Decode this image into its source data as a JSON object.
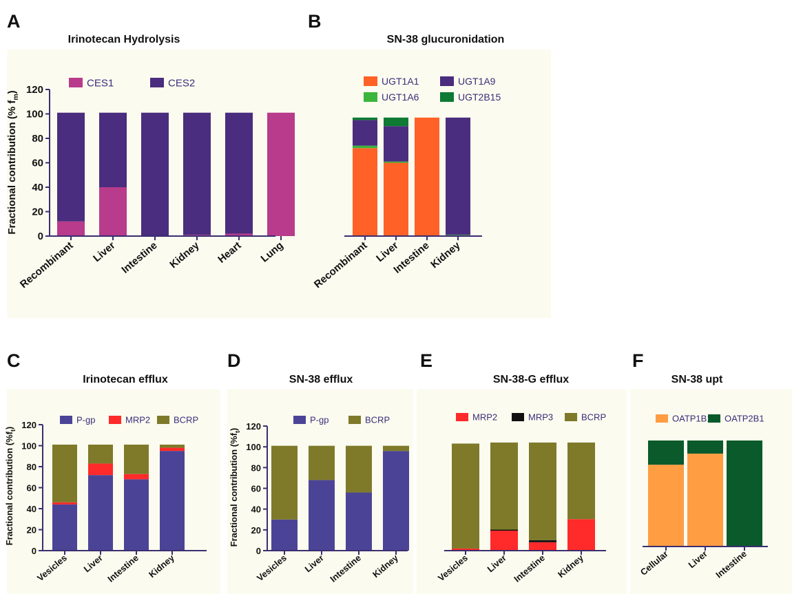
{
  "chart_data": [
    {
      "id": "A",
      "panel_label": "A",
      "title": "Irinotecan Hydrolysis",
      "type": "bar",
      "stacked": true,
      "ylabel": "Fractional contribution (% f",
      "ylabel_sub": "m",
      "ylabel_end": ")",
      "ylim": [
        0,
        120
      ],
      "yticks": [
        0,
        20,
        40,
        60,
        80,
        100,
        120
      ],
      "categories": [
        "Recombinant",
        "Liver",
        "Intestine",
        "Kidney",
        "Heart",
        "Lung"
      ],
      "series": [
        {
          "name": "CES1",
          "color": "#b83b8c",
          "values": [
            12,
            40,
            0,
            1,
            2,
            101
          ]
        },
        {
          "name": "CES2",
          "color": "#4a2d7e",
          "values": [
            89,
            61,
            101,
            100,
            99,
            0
          ]
        }
      ],
      "legend_rows": [
        [
          "CES1",
          "CES2"
        ]
      ]
    },
    {
      "id": "B",
      "panel_label": "B",
      "title": "SN-38 glucuronidation",
      "type": "bar",
      "stacked": true,
      "ylim": [
        0,
        120
      ],
      "categories": [
        "Recombinant",
        "Liver",
        "Intestine",
        "Kidney"
      ],
      "series": [
        {
          "name": "UGT1A1",
          "color": "#ff6127",
          "values": [
            72,
            60,
            97,
            0
          ]
        },
        {
          "name": "UGT1A6",
          "color": "#3bb53b",
          "values": [
            2,
            1,
            0,
            1
          ]
        },
        {
          "name": "UGT1A9",
          "color": "#4a2d7e",
          "values": [
            21,
            29,
            0,
            96
          ]
        },
        {
          "name": "UGT2B15",
          "color": "#0e7a33",
          "values": [
            2,
            7,
            0,
            0
          ]
        }
      ],
      "legend_rows": [
        [
          "UGT1A1",
          "UGT1A9"
        ],
        [
          "UGT1A6",
          "UGT2B15"
        ]
      ]
    },
    {
      "id": "C",
      "panel_label": "C",
      "title": "Irinotecan efflux",
      "type": "bar",
      "stacked": true,
      "ylabel": "Fractional contribution (%f",
      "ylabel_sub": "t",
      "ylabel_end": ")",
      "ylim": [
        0,
        120
      ],
      "yticks": [
        0,
        20,
        40,
        60,
        80,
        100,
        120
      ],
      "categories": [
        "Vesicles",
        "Liver",
        "Intestine",
        "Kidney"
      ],
      "series": [
        {
          "name": "P-gp",
          "color": "#4b4496",
          "values": [
            44,
            72,
            68,
            95
          ]
        },
        {
          "name": "MRP2",
          "color": "#ff2a2a",
          "values": [
            2,
            11,
            5,
            3
          ]
        },
        {
          "name": "BCRP",
          "color": "#7e7a2a",
          "values": [
            55,
            18,
            28,
            3
          ]
        }
      ],
      "legend_rows": [
        [
          "P-gp",
          "MRP2",
          "BCRP"
        ]
      ]
    },
    {
      "id": "D",
      "panel_label": "D",
      "title": "SN-38 efflux",
      "type": "bar",
      "stacked": true,
      "ylabel": "Fractional contribution (%f",
      "ylabel_sub": "t",
      "ylabel_end": ")",
      "ylim": [
        0,
        120
      ],
      "yticks": [
        0,
        20,
        40,
        60,
        80,
        100,
        120
      ],
      "categories": [
        "Vesicles",
        "Liver",
        "Intestine",
        "Kidney"
      ],
      "series": [
        {
          "name": "P-gp",
          "color": "#4b4496",
          "values": [
            30,
            68,
            56,
            96
          ]
        },
        {
          "name": "BCRP",
          "color": "#7e7a2a",
          "values": [
            71,
            33,
            45,
            5
          ]
        }
      ],
      "legend_rows": [
        [
          "P-gp",
          "BCRP"
        ]
      ]
    },
    {
      "id": "E",
      "panel_label": "E",
      "title": "SN-38-G efflux",
      "type": "bar",
      "stacked": true,
      "ylim": [
        0,
        120
      ],
      "categories": [
        "Vesicles",
        "Liver",
        "Intestine",
        "Kidney"
      ],
      "series": [
        {
          "name": "MRP2",
          "color": "#ff2a2a",
          "values": [
            2,
            19,
            8,
            30
          ]
        },
        {
          "name": "MRP3",
          "color": "#111111",
          "values": [
            0,
            1,
            2,
            0
          ]
        },
        {
          "name": "BCRP",
          "color": "#7e7a2a",
          "values": [
            100,
            83,
            93,
            73
          ]
        }
      ],
      "legend_rows": [
        [
          "MRP2",
          "MRP3",
          "BCRP"
        ]
      ]
    },
    {
      "id": "F",
      "panel_label": "F",
      "title": "SN-38 upt",
      "type": "bar",
      "stacked": true,
      "ylim": [
        0,
        120
      ],
      "categories": [
        "Cellular",
        "Liver",
        "Intestine"
      ],
      "series": [
        {
          "name": "OATP1B1",
          "color": "#ff9d43",
          "values": [
            81,
            92,
            0
          ]
        },
        {
          "name": "OATP2B1",
          "color": "#0b5a2c",
          "values": [
            24,
            13,
            105
          ]
        }
      ],
      "legend_rows": [
        [
          "OATP1B1",
          "OATP2B1"
        ]
      ]
    }
  ]
}
